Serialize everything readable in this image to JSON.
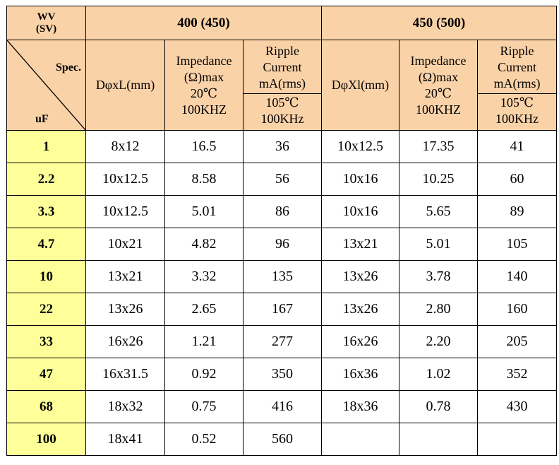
{
  "header": {
    "wv_label": "WV",
    "sv_label": "(SV)",
    "spec_label": "Spec.",
    "uf_label": "uF",
    "group1": "400 (450)",
    "group2": "450 (500)",
    "size1": "DφxL(mm)",
    "size2": "DφXl(mm)",
    "imp_line1": "Impedance",
    "imp_line2": "(Ω)max",
    "imp_line3": "20℃",
    "imp_line4": "100KHZ",
    "rip_line1": "Ripple",
    "rip_line2": "Current",
    "rip_line3": "mA(rms)",
    "rip_line4": "105℃",
    "rip_line5": "100KHz"
  },
  "rows": [
    {
      "uf": "1",
      "c1": "8x12",
      "c2": "16.5",
      "c3": "36",
      "c4": "10x12.5",
      "c5": "17.35",
      "c6": "41"
    },
    {
      "uf": "2.2",
      "c1": "10x12.5",
      "c2": "8.58",
      "c3": "56",
      "c4": "10x16",
      "c5": "10.25",
      "c6": "60"
    },
    {
      "uf": "3.3",
      "c1": "10x12.5",
      "c2": "5.01",
      "c3": "86",
      "c4": "10x16",
      "c5": "5.65",
      "c6": "89"
    },
    {
      "uf": "4.7",
      "c1": "10x21",
      "c2": "4.82",
      "c3": "96",
      "c4": "13x21",
      "c5": "5.01",
      "c6": "105"
    },
    {
      "uf": "10",
      "c1": "13x21",
      "c2": "3.32",
      "c3": "135",
      "c4": "13x26",
      "c5": "3.78",
      "c6": "140"
    },
    {
      "uf": "22",
      "c1": "13x26",
      "c2": "2.65",
      "c3": "167",
      "c4": "13x26",
      "c5": "2.80",
      "c6": "160"
    },
    {
      "uf": "33",
      "c1": "16x26",
      "c2": "1.21",
      "c3": "277",
      "c4": "16x26",
      "c5": "2.20",
      "c6": "205"
    },
    {
      "uf": "47",
      "c1": "16x31.5",
      "c2": "0.92",
      "c3": "350",
      "c4": "16x36",
      "c5": "1.02",
      "c6": "352"
    },
    {
      "uf": "68",
      "c1": "18x32",
      "c2": "0.75",
      "c3": "416",
      "c4": "18x36",
      "c5": "0.78",
      "c6": "430"
    },
    {
      "uf": "100",
      "c1": "18x41",
      "c2": "0.52",
      "c3": "560",
      "c4": "",
      "c5": "",
      "c6": ""
    }
  ]
}
